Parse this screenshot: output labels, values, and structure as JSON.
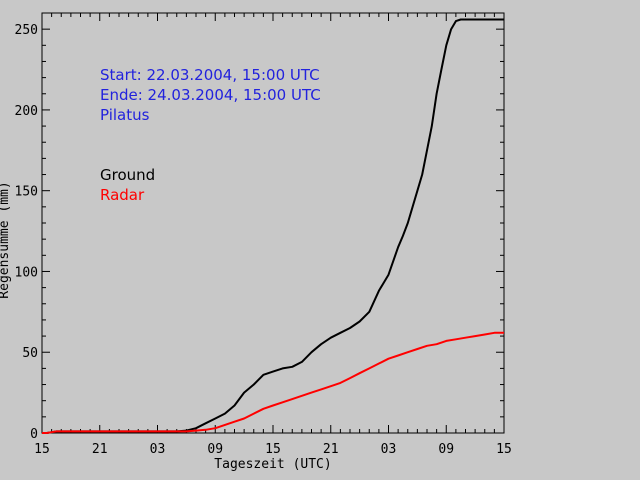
{
  "chart_data": {
    "type": "line",
    "xlabel": "Tageszeit (UTC)",
    "ylabel": "Regensumme (mm)",
    "x_tick_labels": [
      "15",
      "21",
      "03",
      "09",
      "15",
      "21",
      "03",
      "09",
      "15"
    ],
    "x_hours_range": [
      0,
      48
    ],
    "ylim": [
      0,
      260
    ],
    "y_ticks": [
      0,
      50,
      100,
      150,
      200,
      250
    ],
    "annotations": {
      "start": "Start: 22.03.2004, 15:00 UTC",
      "end": "Ende: 24.03.2004, 15:00 UTC",
      "station": "Pilatus"
    },
    "series": [
      {
        "name": "Ground",
        "color": "#000000",
        "x_hours": [
          0,
          0.5,
          1,
          1.5,
          3,
          6,
          9,
          12,
          14,
          15,
          16,
          17,
          18,
          19,
          20,
          21,
          22,
          23,
          24,
          25,
          26,
          27,
          28,
          29,
          30,
          31,
          32,
          33,
          34,
          35,
          36,
          37,
          37.5,
          38,
          38.5,
          39,
          39.5,
          40,
          40.5,
          41,
          41.5,
          42,
          42.5,
          43,
          43.5,
          44,
          44.5,
          45,
          46,
          47,
          48
        ],
        "values": [
          0,
          0,
          0.5,
          1,
          1,
          1,
          1,
          1,
          1,
          1.5,
          3,
          6,
          9,
          12,
          17,
          25,
          30,
          36,
          38,
          40,
          41,
          44,
          50,
          55,
          59,
          62,
          65,
          69,
          75,
          88,
          98,
          115,
          122,
          130,
          140,
          150,
          160,
          175,
          190,
          210,
          225,
          240,
          250,
          255,
          256,
          256,
          256,
          256,
          256,
          256,
          256
        ]
      },
      {
        "name": "Radar",
        "color": "#ff0000",
        "x_hours": [
          0,
          0.5,
          1,
          1.5,
          3,
          6,
          9,
          12,
          14,
          15,
          16,
          17,
          18,
          19,
          20,
          21,
          22,
          23,
          24,
          25,
          26,
          27,
          28,
          29,
          30,
          31,
          32,
          33,
          34,
          35,
          36,
          37,
          38,
          39,
          40,
          41,
          42,
          43,
          44,
          45,
          46,
          47,
          48
        ],
        "values": [
          0,
          0,
          0.5,
          1,
          1,
          1,
          1,
          1,
          1,
          1,
          1.5,
          2,
          3,
          5,
          7,
          9,
          12,
          15,
          17,
          19,
          21,
          23,
          25,
          27,
          29,
          31,
          34,
          37,
          40,
          43,
          46,
          48,
          50,
          52,
          54,
          55,
          57,
          58,
          59,
          60,
          61,
          62,
          62
        ]
      }
    ],
    "legend_placement": "left-middle"
  }
}
